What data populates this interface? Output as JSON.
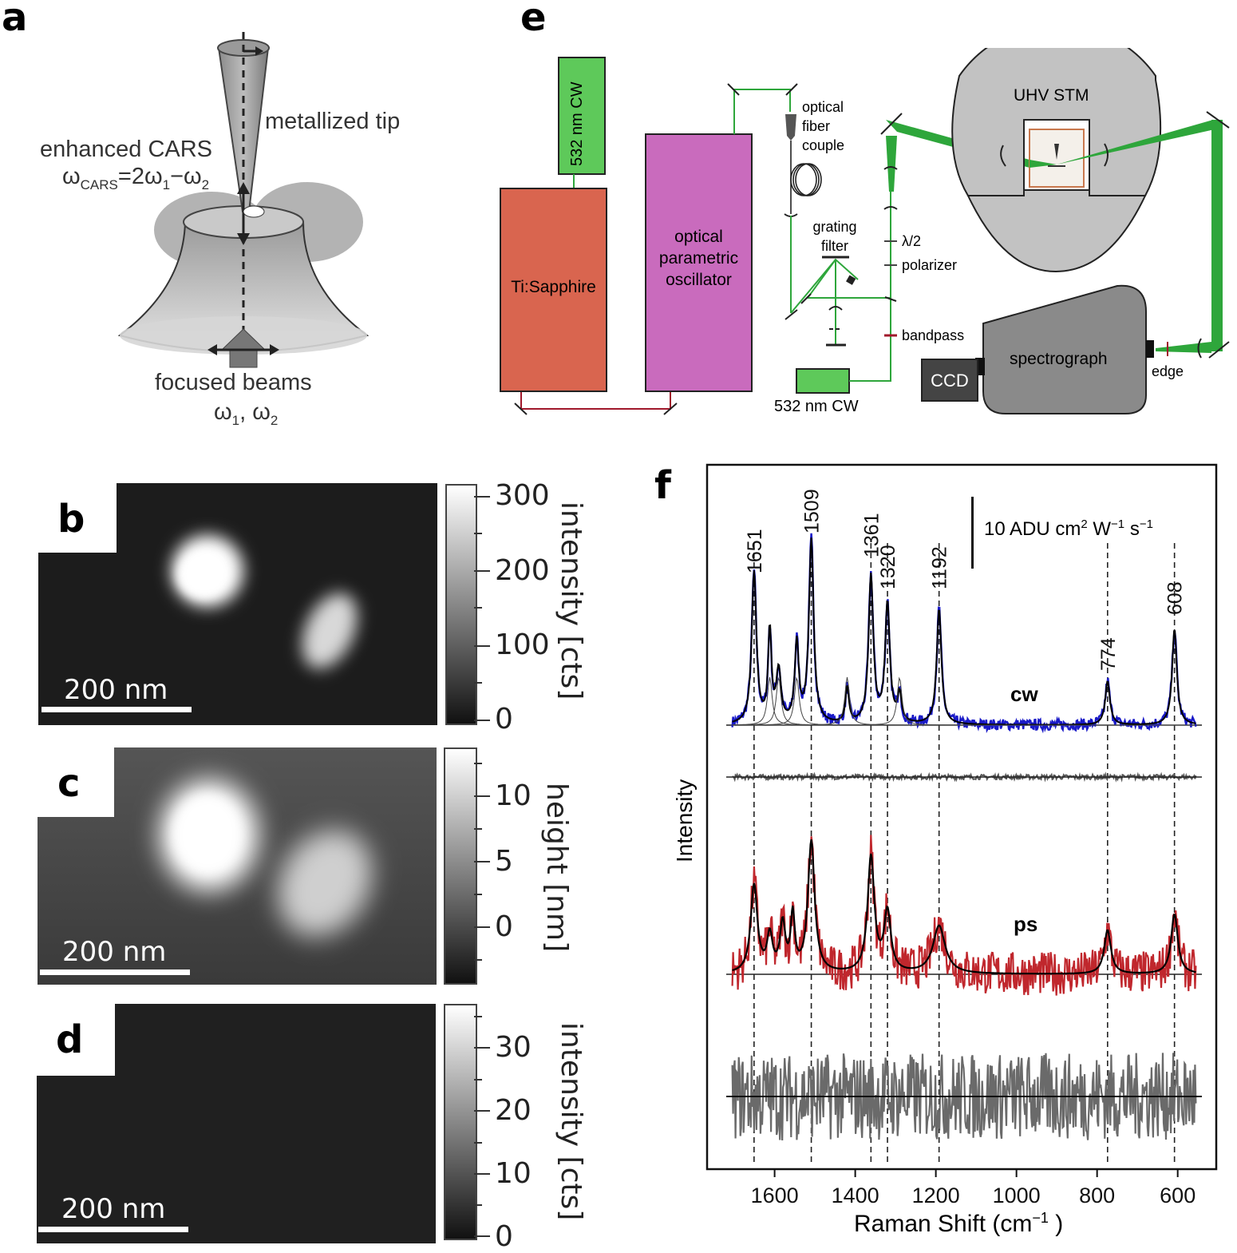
{
  "panels": {
    "a": {
      "letter": "a",
      "tip_label": "metallized tip",
      "cars_label_line1": "enhanced CARS",
      "cars_formula_w": "ω",
      "cars_formula_sub": "CARS",
      "cars_formula_rest": "=2ω",
      "cars_formula_sub1": "1",
      "cars_formula_minus": "−ω",
      "cars_formula_sub2": "2",
      "beams_label_line1": "focused beams",
      "beams_label_w1": "ω",
      "beams_label_sub1": "1",
      "beams_label_comma": ", ω",
      "beams_label_sub2": "2"
    },
    "b": {
      "letter": "b",
      "scale_bar": "200 nm",
      "colorbar_label": "intensity [cts]",
      "ticks": [
        "300",
        "200",
        "100",
        "0"
      ]
    },
    "c": {
      "letter": "c",
      "scale_bar": "200 nm",
      "colorbar_label": "height [nm]",
      "ticks": [
        "10",
        "5",
        "0"
      ]
    },
    "d": {
      "letter": "d",
      "scale_bar": "200 nm",
      "colorbar_label": "intensity [cts]",
      "ticks": [
        "30",
        "20",
        "10",
        "0"
      ]
    },
    "e": {
      "letter": "e",
      "cw_top": "532 nm CW",
      "ti_sapphire": "Ti:Sapphire",
      "opo_line1": "optical",
      "opo_line2": "parametric",
      "opo_line3": "oscillator",
      "fiber_line1": "optical",
      "fiber_line2": "fiber",
      "fiber_line3": "couple",
      "grating_line1": "grating",
      "grating_line2": "filter",
      "half_wave": "λ/2",
      "polarizer": "polarizer",
      "bandpass": "bandpass",
      "cw_bottom": "532 nm CW",
      "uhv_stm": "UHV STM",
      "spectrograph": "spectrograph",
      "ccd": "CCD",
      "edge": "edge",
      "colors": {
        "ti_sapphire": "#d9654f",
        "opo": "#c96bbd",
        "cw_laser": "#5ec95a",
        "beam": "#2ea63b",
        "sync_line": "#a0182b"
      }
    },
    "f": {
      "letter": "f",
      "ylabel": "Intensity",
      "xlabel_main": "Raman Shift (cm",
      "xlabel_sup": "−1",
      "xlabel_end": " )",
      "scale_label": "10 ADU cm",
      "scale_label_sup1": "2",
      "scale_label_w": "  W",
      "scale_label_sup2": "−1",
      "scale_label_s": "  s",
      "scale_label_sup3": "−1",
      "trace_cw_label": "cw",
      "trace_ps_label": "ps",
      "colors": {
        "cw": "#1a1ac8",
        "ps": "#c0272d",
        "residual": "#555555",
        "bottom": "#6a6a6a",
        "fit": "#000000"
      }
    }
  },
  "chart_data": {
    "type": "line",
    "title": "",
    "xlabel": "Raman Shift (cm−1 )",
    "ylabel": "Intensity",
    "x_ticks": [
      1600,
      1400,
      1200,
      1000,
      800,
      600
    ],
    "xlim": [
      1720,
      540
    ],
    "x_reversed": true,
    "scale_bar": "10 ADU cm2 W−1 s−1",
    "peaks": [
      1651,
      1509,
      1361,
      1320,
      1192,
      774,
      608
    ],
    "peak_labels": [
      "1651",
      "1509",
      "1361",
      "1320",
      "1192",
      "774",
      "608"
    ],
    "minor_peaks": [
      1612,
      1590,
      1545,
      1420,
      1290
    ],
    "series": [
      {
        "name": "cw"
      },
      {},
      {
        "name": "ps"
      },
      {}
    ]
  }
}
